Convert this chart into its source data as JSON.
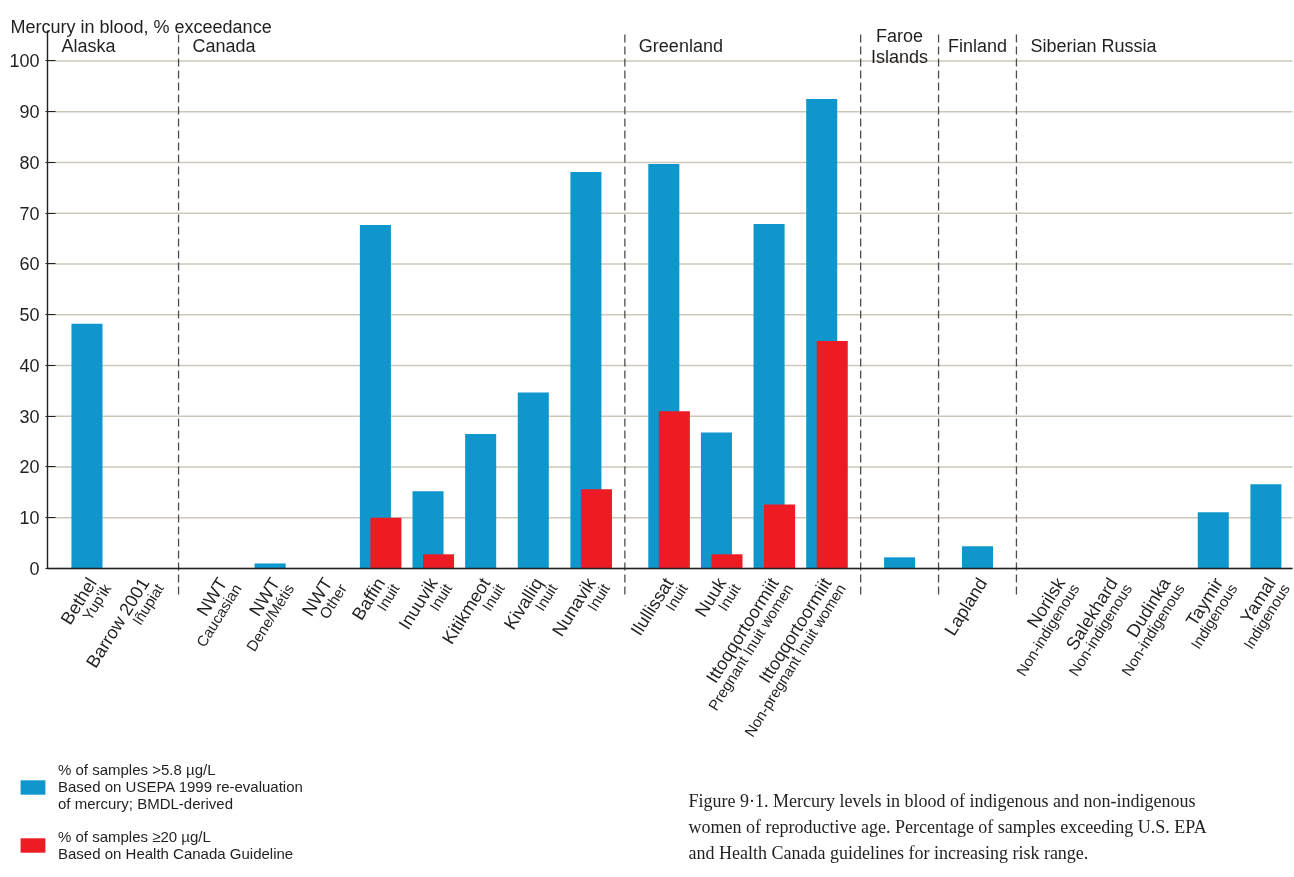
{
  "chart_data": {
    "type": "bar",
    "ylabel": "Mercury in blood, % exceedance",
    "categories": [
      "Bethel\nYup'ik",
      "Barrow 2001\nIñupiat",
      "NWT\nCaucasian",
      "NWT\nDene/Métis",
      "NWT\nOther",
      "Baffin\nInuit",
      "Inuuvik\nInuit",
      "Kitikmeot\nInuit",
      "Kivalliq\nInuit",
      "Nunavik\nInuit",
      "Ilullissat\nInuit",
      "Nuuk\nInuit",
      "Ittoqqortoormiit\nPregnant Inuit women",
      "Ittoqqortoormiit\nNon-pregnant Inuit women",
      null,
      "Lapland",
      "Norilsk\nNon-indigenous",
      "Salekhard\nNon-indigenous",
      "Dudinka\nNon-indigenous",
      "Taymir\nIndigenous",
      "Yamal\nIndigenous"
    ],
    "series": [
      {
        "name": "% of samples >5.8 µg/L\nBased on USEPA 1999 re-evaluation\nof mercury; BMDL-derived",
        "color": "#0f97cd",
        "values": [
          48.2,
          null,
          null,
          1.0,
          null,
          67.7,
          15.2,
          26.5,
          34.7,
          78.1,
          79.7,
          26.8,
          67.9,
          92.5,
          2.2,
          4.4,
          null,
          null,
          null,
          11.1,
          16.6
        ]
      },
      {
        "name": "% of samples ≥20 µg/L\nBased on Health Canada Guideline",
        "color": "#ed1c24",
        "values": [
          null,
          null,
          null,
          null,
          null,
          10.0,
          2.8,
          null,
          null,
          15.6,
          31.0,
          2.8,
          12.6,
          44.8,
          null,
          null,
          null,
          null,
          null,
          null,
          null
        ]
      }
    ],
    "ylim": [
      0,
      106
    ],
    "yticks": [
      0,
      10,
      20,
      30,
      40,
      50,
      60,
      70,
      80,
      90,
      100
    ],
    "grid": "y",
    "legend": "bottom left",
    "annotations": [
      "Alaska",
      "Canada",
      "Greenland",
      "Faroe\nIslands",
      "Finland",
      "Siberian Russia",
      "Figure 9·1. Mercury levels in blood of indigenous and non-indigenous women of reproductive age. Percentage of samples exceeding U.S. EPA and Health Canada guidelines for increasing risk range."
    ]
  }
}
